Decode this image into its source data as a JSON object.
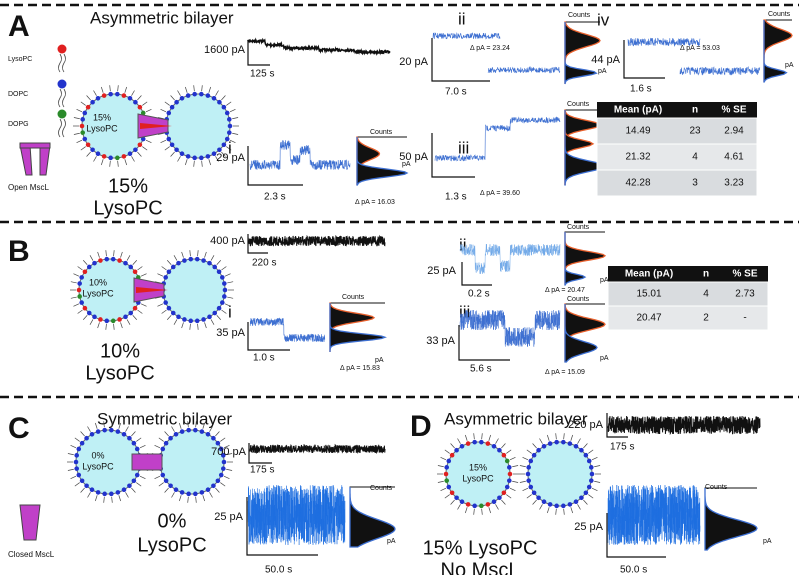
{
  "common": {
    "counts": "Counts",
    "pa_axis": "pA"
  },
  "panel_a": {
    "letter": "A",
    "title": "Asymmetric bilayer",
    "legend": {
      "lysopc": "LysoPC",
      "dopc": "DOPC",
      "dopg": "DOPG",
      "channel": "Open MscL"
    },
    "vesicle": [
      "15%",
      "LysoPC"
    ],
    "caption": [
      "15%",
      "LysoPC"
    ],
    "overview": {
      "y_scale": "1600 pA",
      "x_scale": "125 s"
    },
    "traces": [
      {
        "label": "i",
        "y_scale": "29 pA",
        "x_scale": "2.3 s",
        "delta": "Δ pA = 16.03"
      },
      {
        "label": "ii",
        "y_scale": "20 pA",
        "x_scale": "7.0 s",
        "delta": "Δ pA = 23.24"
      },
      {
        "label": "iii",
        "y_scale": "50 pA",
        "x_scale": "1.3 s",
        "delta": "Δ pA = 39.60"
      },
      {
        "label": "iv",
        "y_scale": "44 pA",
        "x_scale": "1.6 s",
        "delta": "Δ pA = 53.03"
      }
    ],
    "table": {
      "header": [
        "Mean (pA)",
        "n",
        "% SE"
      ],
      "rows": [
        [
          14.49,
          23,
          2.94
        ],
        [
          21.32,
          4,
          4.61
        ],
        [
          42.28,
          3,
          3.23
        ]
      ]
    }
  },
  "panel_b": {
    "letter": "B",
    "vesicle": [
      "10%",
      "LysoPC"
    ],
    "caption": [
      "10%",
      "LysoPC"
    ],
    "overview": {
      "y_scale": "400 pA",
      "x_scale": "220 s"
    },
    "traces": [
      {
        "label": "i",
        "y_scale": "35 pA",
        "x_scale": "1.0 s",
        "delta": "Δ pA = 15.83"
      },
      {
        "label": "ii",
        "y_scale": "25 pA",
        "x_scale": "0.2 s",
        "delta": "Δ pA = 20.47"
      },
      {
        "label": "iii",
        "y_scale": "33 pA",
        "x_scale": "5.6 s",
        "delta": "Δ pA = 15.09"
      }
    ],
    "table": {
      "header": [
        "Mean (pA)",
        "n",
        "% SE"
      ],
      "rows": [
        [
          15.01,
          4,
          2.73
        ],
        [
          20.47,
          2,
          "-"
        ]
      ]
    }
  },
  "panel_c": {
    "letter": "C",
    "title": "Symmetric bilayer",
    "vesicle": [
      "0%",
      "LysoPC"
    ],
    "channel": "Closed MscL",
    "caption": [
      "0%",
      "LysoPC"
    ],
    "overview": {
      "y_scale": "700 pA",
      "x_scale": "175 s"
    },
    "trace": {
      "y_scale": "25 pA",
      "x_scale": "50.0 s"
    }
  },
  "panel_d": {
    "letter": "D",
    "title": "Asymmetric bilayer",
    "vesicle": [
      "15%",
      "LysoPC"
    ],
    "caption": [
      "15% LysoPC",
      "No MscL"
    ],
    "overview": {
      "y_scale": "220 pA",
      "x_scale": "175 s"
    },
    "trace": {
      "y_scale": "25 pA",
      "x_scale": "50.0 s"
    }
  }
}
